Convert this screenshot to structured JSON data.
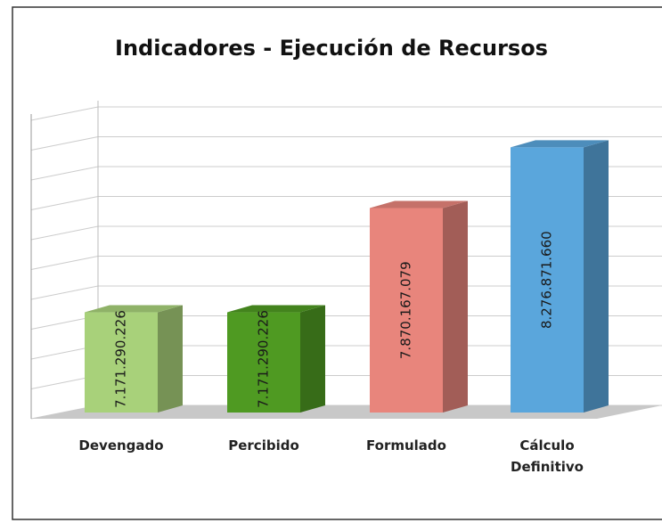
{
  "chart_data": {
    "type": "bar3d",
    "title": "Indicadores - Ejecución de Recursos",
    "categories": [
      "Devengado",
      "Percibido",
      "Formulado",
      "Cálculo Definitivo"
    ],
    "values": [
      7171290226,
      7171290226,
      7870167079,
      8276871660
    ],
    "value_labels": [
      "7.171.290.226",
      "7.171.290.226",
      "7.870.167.079",
      "8.276.871.660"
    ],
    "colors": [
      "#a8d17a",
      "#4f9a22",
      "#e8857c",
      "#5aa6dc"
    ],
    "ylim": [
      6500000000,
      8500000000
    ],
    "yticks": [
      6500000000,
      6700000000,
      6900000000,
      7100000000,
      7300000000,
      7500000000,
      7700000000,
      7900000000,
      8100000000,
      8300000000,
      8500000000
    ],
    "grid": true
  }
}
